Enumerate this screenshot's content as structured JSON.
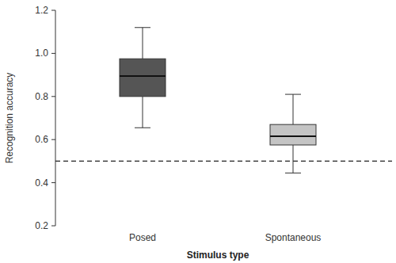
{
  "chart_data": {
    "type": "box",
    "y_label": "Recognition accuracy",
    "x_label": "Stimulus type",
    "categories": [
      "Posed",
      "Spontaneous"
    ],
    "boxes": [
      {
        "min": 0.655,
        "q1": 0.8,
        "median": 0.895,
        "q3": 0.975,
        "max": 1.12
      },
      {
        "min": 0.445,
        "q1": 0.575,
        "median": 0.615,
        "q3": 0.67,
        "max": 0.81
      }
    ],
    "colors": [
      "#555555",
      "#c4c4c4"
    ],
    "reference_line": {
      "value": 0.5,
      "line_style": "dashed"
    },
    "ylim": [
      0.2,
      1.2
    ],
    "yticks": [
      0.2,
      0.4,
      0.6,
      0.8,
      {
        "value": 1,
        "label": "1.0"
      },
      1.2
    ],
    "grid": false
  }
}
